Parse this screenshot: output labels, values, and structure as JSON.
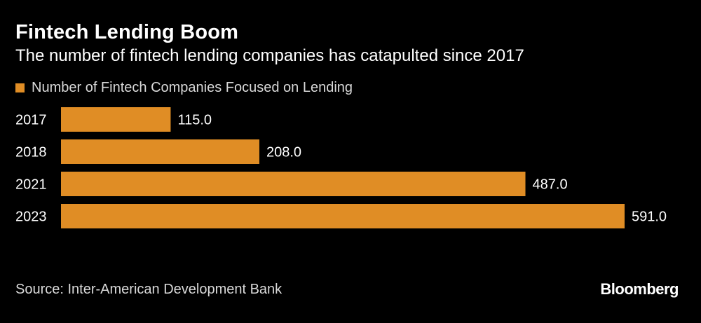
{
  "header": {
    "title": "Fintech Lending Boom",
    "subtitle": "The number of fintech lending companies has catapulted since 2017"
  },
  "colors": {
    "bar": "#e08d25",
    "background": "#000000",
    "text": "#ffffff",
    "muted_text": "#d9d9d9"
  },
  "chart_data": {
    "type": "bar",
    "orientation": "horizontal",
    "title": "Fintech Lending Boom",
    "subtitle": "The number of fintech lending companies has catapulted since 2017",
    "categories": [
      "2017",
      "2018",
      "2021",
      "2023"
    ],
    "series": [
      {
        "name": "Number of Fintech Companies Focused on Lending",
        "values": [
          115.0,
          208.0,
          487.0,
          591.0
        ],
        "labels": [
          "115.0",
          "208.0",
          "487.0",
          "591.0"
        ]
      }
    ],
    "xlim": [
      0,
      591.0
    ],
    "xlabel": "",
    "ylabel": "",
    "grid": false,
    "legend": "top-left"
  },
  "footer": {
    "source": "Source: Inter-American Development Bank",
    "brand": "Bloomberg"
  }
}
